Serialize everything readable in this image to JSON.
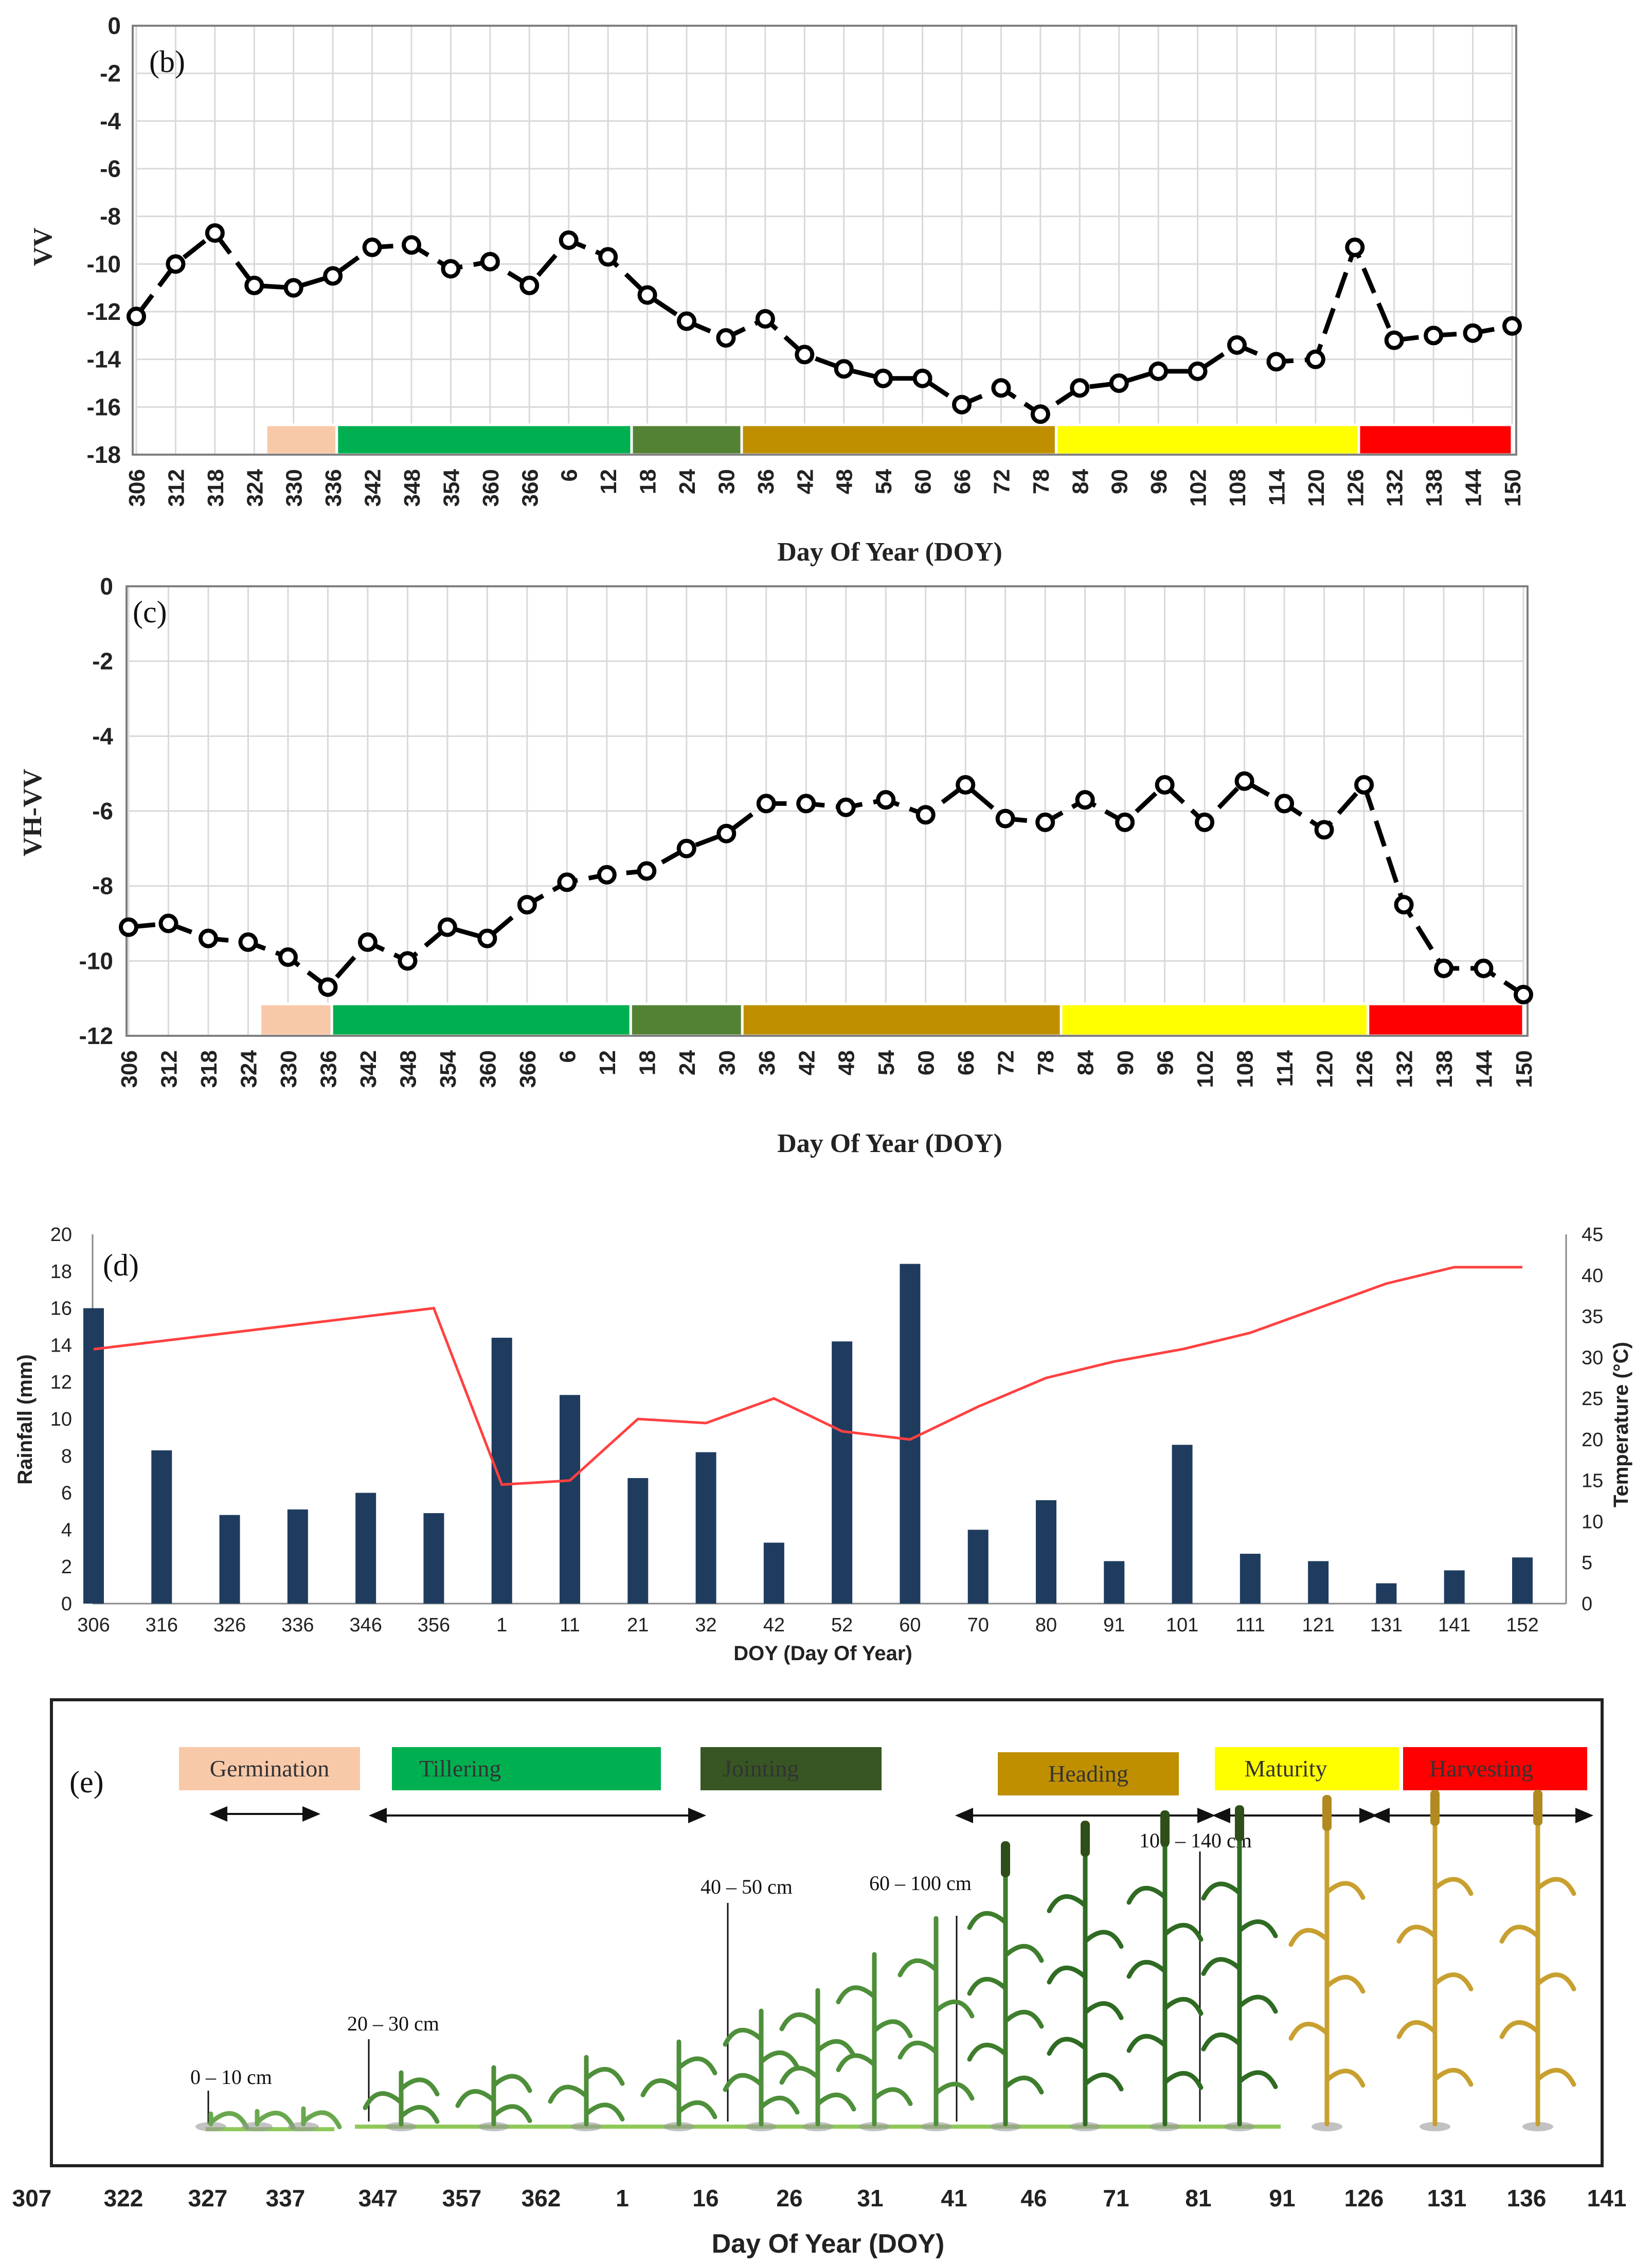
{
  "panels": {
    "b": {
      "label": "(b)",
      "ylabel": "VV",
      "xlabel": "Day Of Year (DOY)",
      "yticks": [
        "0",
        "-2",
        "-4",
        "-6",
        "-8",
        "-10",
        "-12",
        "-14",
        "-16",
        "-18"
      ],
      "ylim": [
        -18,
        0
      ],
      "xticks": [
        "306",
        "312",
        "318",
        "324",
        "330",
        "336",
        "342",
        "348",
        "354",
        "360",
        "366",
        "6",
        "12",
        "18",
        "24",
        "30",
        "36",
        "42",
        "48",
        "54",
        "60",
        "66",
        "72",
        "78",
        "84",
        "90",
        "96",
        "102",
        "108",
        "114",
        "120",
        "126",
        "132",
        "138",
        "144",
        "150"
      ]
    },
    "c": {
      "label": "(c)",
      "ylabel": "VH-VV",
      "xlabel": "Day Of Year (DOY)",
      "yticks": [
        "0",
        "-2",
        "-4",
        "-6",
        "-8",
        "-10",
        "-12"
      ],
      "ylim": [
        -12,
        0
      ],
      "xticks": [
        "306",
        "312",
        "318",
        "324",
        "330",
        "336",
        "342",
        "348",
        "354",
        "360",
        "366",
        "6",
        "12",
        "18",
        "24",
        "30",
        "36",
        "42",
        "48",
        "54",
        "60",
        "66",
        "72",
        "78",
        "84",
        "90",
        "96",
        "102",
        "108",
        "114",
        "120",
        "126",
        "132",
        "138",
        "144",
        "150"
      ]
    },
    "d": {
      "label": "(d)",
      "ylabel_left": "Rainfall (mm)",
      "ylabel_right": "Temperature (°C)",
      "xlabel": "DOY (Day Of Year)",
      "yticks_left": [
        "0",
        "2",
        "4",
        "6",
        "8",
        "10",
        "12",
        "14",
        "16",
        "18",
        "20"
      ],
      "yticks_right": [
        "0",
        "5",
        "10",
        "15",
        "20",
        "25",
        "30",
        "35",
        "40",
        "45"
      ],
      "xticks": [
        "306",
        "316",
        "326",
        "336",
        "346",
        "356",
        "1",
        "11",
        "21",
        "32",
        "42",
        "52",
        "60",
        "70",
        "80",
        "91",
        "101",
        "111",
        "121",
        "131",
        "141",
        "152"
      ]
    },
    "e": {
      "label": "(e)",
      "xlabel": "Day Of Year (DOY)",
      "stages": [
        {
          "name": "Germination",
          "color": "#f8c9a9"
        },
        {
          "name": "Tillering",
          "color": "#00b050"
        },
        {
          "name": "Jointing",
          "color": "#375623"
        },
        {
          "name": "Heading",
          "color": "#bf8f00"
        },
        {
          "name": "Maturity",
          "color": "#ffff00"
        },
        {
          "name": "Harvesting",
          "color": "#ff0000"
        }
      ],
      "heights": [
        "0 – 10 cm",
        "20 – 30 cm",
        "40 – 50 cm",
        "60 – 100 cm",
        "100 – 140 cm"
      ],
      "xticks": [
        "307",
        "322",
        "327",
        "337",
        "347",
        "357",
        "362",
        "1",
        "16",
        "26",
        "31",
        "41",
        "46",
        "71",
        "81",
        "91",
        "126",
        "131",
        "136",
        "141"
      ]
    }
  },
  "stage_bar": [
    {
      "stage": "Germination",
      "color": "#f8c9a9",
      "start_index": 3.3,
      "end_index": 5.1
    },
    {
      "stage": "Tillering",
      "color": "#00b050",
      "start_index": 5.1,
      "end_index": 12.6
    },
    {
      "stage": "Jointing",
      "color": "#548235",
      "start_index": 12.6,
      "end_index": 15.4
    },
    {
      "stage": "Heading",
      "color": "#bf8f00",
      "start_index": 15.4,
      "end_index": 23.4
    },
    {
      "stage": "Maturity",
      "color": "#ffff00",
      "start_index": 23.4,
      "end_index": 31.1
    },
    {
      "stage": "Harvesting",
      "color": "#ff0000",
      "start_index": 31.1,
      "end_index": 35
    }
  ],
  "chart_data": [
    {
      "type": "line",
      "panel": "b",
      "title": "",
      "xlabel": "Day Of Year (DOY)",
      "ylabel": "VV",
      "x": [
        "306",
        "312",
        "318",
        "324",
        "330",
        "336",
        "342",
        "348",
        "354",
        "360",
        "366",
        "6",
        "12",
        "18",
        "24",
        "30",
        "36",
        "42",
        "48",
        "54",
        "60",
        "66",
        "72",
        "78",
        "84",
        "90",
        "96",
        "102",
        "108",
        "114",
        "120",
        "126",
        "132",
        "138",
        "144",
        "150"
      ],
      "values": [
        -12.2,
        -10.0,
        -8.7,
        -10.9,
        -11.0,
        -10.5,
        -9.3,
        -9.2,
        -10.2,
        -9.9,
        -10.9,
        -9.0,
        -9.7,
        -11.3,
        -12.4,
        -13.1,
        -12.3,
        -13.8,
        -14.4,
        -14.8,
        -14.8,
        -15.9,
        -15.2,
        -16.3,
        -15.2,
        -15.0,
        -14.5,
        -14.5,
        -13.4,
        -14.1,
        -14.0,
        -9.3,
        -13.2,
        -13.0,
        -12.9,
        -12.6
      ],
      "ylim": [
        -18,
        0
      ]
    },
    {
      "type": "line",
      "panel": "c",
      "title": "",
      "xlabel": "Day Of Year (DOY)",
      "ylabel": "VH-VV",
      "x": [
        "306",
        "312",
        "318",
        "324",
        "330",
        "336",
        "342",
        "348",
        "354",
        "360",
        "366",
        "6",
        "12",
        "18",
        "24",
        "30",
        "36",
        "42",
        "48",
        "54",
        "60",
        "66",
        "72",
        "78",
        "84",
        "90",
        "96",
        "102",
        "108",
        "114",
        "120",
        "126",
        "132",
        "138",
        "144",
        "150"
      ],
      "values": [
        -9.1,
        -9.0,
        -9.4,
        -9.5,
        -9.9,
        -10.7,
        -9.5,
        -10.0,
        -9.1,
        -9.4,
        -8.5,
        -7.9,
        -7.7,
        -7.6,
        -7.0,
        -6.6,
        -5.8,
        -5.8,
        -5.9,
        -5.7,
        -6.1,
        -5.3,
        -6.2,
        -6.3,
        -5.7,
        -6.3,
        -5.3,
        -6.3,
        -5.2,
        -5.8,
        -6.5,
        -5.3,
        -8.5,
        -10.2,
        -10.2,
        -10.9
      ],
      "ylim": [
        -12,
        0
      ]
    },
    {
      "type": "bar",
      "panel": "d",
      "title": "",
      "xlabel": "DOY (Day Of Year)",
      "ylabel": "Rainfall (mm)",
      "categories": [
        "306",
        "316",
        "326",
        "336",
        "346",
        "356",
        "1",
        "11",
        "21",
        "32",
        "42",
        "52",
        "60",
        "70",
        "80",
        "91",
        "101",
        "111",
        "121",
        "131",
        "141",
        "152"
      ],
      "series": [
        {
          "name": "Rainfall (mm)",
          "axis": "left",
          "type": "bar",
          "values": [
            16.0,
            8.3,
            4.8,
            5.1,
            6.0,
            4.9,
            14.4,
            11.3,
            6.8,
            8.2,
            3.3,
            14.2,
            18.4,
            4.0,
            5.6,
            2.3,
            8.6,
            2.7,
            2.3,
            1.1,
            1.8,
            2.5
          ]
        },
        {
          "name": "Temperature (°C)",
          "axis": "right",
          "type": "line",
          "values": [
            31,
            32,
            33,
            34,
            35,
            36,
            14.5,
            15,
            22.5,
            22,
            25,
            21,
            20,
            24,
            27.5,
            29.5,
            31,
            33,
            36,
            39,
            41,
            41
          ]
        }
      ],
      "ylim": [
        0,
        20
      ],
      "ylim_right": [
        0,
        45
      ]
    }
  ]
}
